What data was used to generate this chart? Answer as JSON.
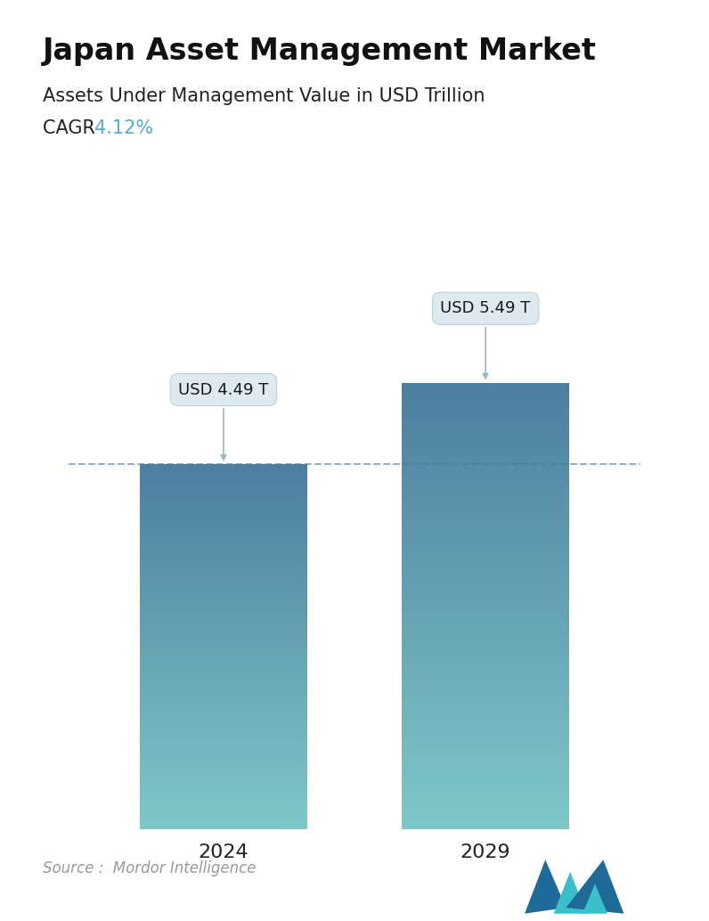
{
  "title": "Japan Asset Management Market",
  "subtitle": "Assets Under Management Value in USD Trillion",
  "cagr_label": "CAGR ",
  "cagr_value": "4.12%",
  "cagr_color": "#5aabcb",
  "categories": [
    "2024",
    "2029"
  ],
  "values": [
    4.49,
    5.49
  ],
  "bar_labels": [
    "USD 4.49 T",
    "USD 5.49 T"
  ],
  "bar_top_color": "#4d7fa0",
  "bar_bottom_color": "#7ec8c8",
  "dashed_line_color": "#4a78a0",
  "dashed_line_y": 4.49,
  "source_text": "Source :  Mordor Intelligence",
  "background_color": "#ffffff",
  "title_fontsize": 24,
  "subtitle_fontsize": 15,
  "cagr_fontsize": 15,
  "bar_label_fontsize": 13,
  "xtick_fontsize": 16,
  "source_fontsize": 12,
  "ylim": [
    0,
    6.8
  ],
  "bar_width": 0.28,
  "bar_positions": [
    0.28,
    0.72
  ]
}
